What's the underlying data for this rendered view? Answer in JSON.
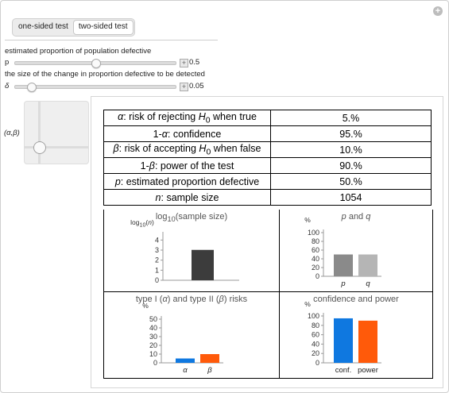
{
  "controls": {
    "test_tabs": [
      {
        "label": "one-sided test",
        "active": false
      },
      {
        "label": "two-sided test",
        "active": true
      }
    ],
    "p_heading": "estimated proportion of population defective",
    "p_name": "p",
    "p_value": "0.5",
    "p_fraction": 0.5,
    "delta_heading": "the size of the change in proportion defective to be detected",
    "delta_name": "δ",
    "delta_value": "0.05",
    "delta_fraction": 0.1,
    "pad_label": "(α,β)"
  },
  "colors": {
    "alpha_bar": "#0f78e0",
    "beta_bar": "#ff5a0a",
    "gray_dark": "#3c3c3c",
    "gray_p": "#8a8a8a",
    "gray_q": "#b5b5b5"
  },
  "results": [
    {
      "label_html": "<i>α</i>: risk of rejecting <i>H</i><sub>0</sub> when true",
      "value": "5.%"
    },
    {
      "label_html": "1-<i>α</i>: confidence",
      "value": "95.%"
    },
    {
      "label_html": "<i>β</i>: risk of accepting <i>H</i><sub>0</sub> when false",
      "value": "10.%"
    },
    {
      "label_html": "1-<i>β</i>: power of the test",
      "value": "90.%"
    },
    {
      "label_html": "<i>p</i>: estimated proportion defective",
      "value": "50.%"
    },
    {
      "label_html": "<i>n</i>: sample size",
      "value": "1054"
    }
  ],
  "chart_data": [
    {
      "type": "bar",
      "title_html": "log<sub>10</sub>(sample size)",
      "ylabel_html": "log<sub>10</sub>(<i>n</i>)",
      "categories": [
        ""
      ],
      "values": [
        3.02
      ],
      "ylim": [
        0,
        4.5
      ],
      "yticks": [
        "0",
        "1",
        "2",
        "3",
        "4"
      ],
      "colors": [
        "#3c3c3c"
      ]
    },
    {
      "type": "bar",
      "title_html": "<i>p</i> and <i>q</i>",
      "ylabel_html": "%",
      "categories": [
        "p",
        "q"
      ],
      "values": [
        50,
        50
      ],
      "ylim": [
        0,
        100
      ],
      "yticks": [
        "0",
        "20",
        "40",
        "60",
        "80",
        "100"
      ],
      "colors": [
        "#8a8a8a",
        "#b5b5b5"
      ]
    },
    {
      "type": "bar",
      "title_html": "type I (<i>α</i>) and type II (<i>β</i>) risks",
      "ylabel_html": "%",
      "categories": [
        "α",
        "β"
      ],
      "values": [
        5,
        10
      ],
      "ylim": [
        0,
        50
      ],
      "yticks": [
        "0",
        "10",
        "20",
        "30",
        "40",
        "50"
      ],
      "colors": [
        "#0f78e0",
        "#ff5a0a"
      ]
    },
    {
      "type": "bar",
      "title_html": "confidence and power",
      "ylabel_html": "%",
      "categories": [
        "conf.",
        "power"
      ],
      "values": [
        95,
        90
      ],
      "ylim": [
        0,
        100
      ],
      "yticks": [
        "0",
        "20",
        "40",
        "60",
        "80",
        "100"
      ],
      "colors": [
        "#0f78e0",
        "#ff5a0a"
      ]
    }
  ]
}
